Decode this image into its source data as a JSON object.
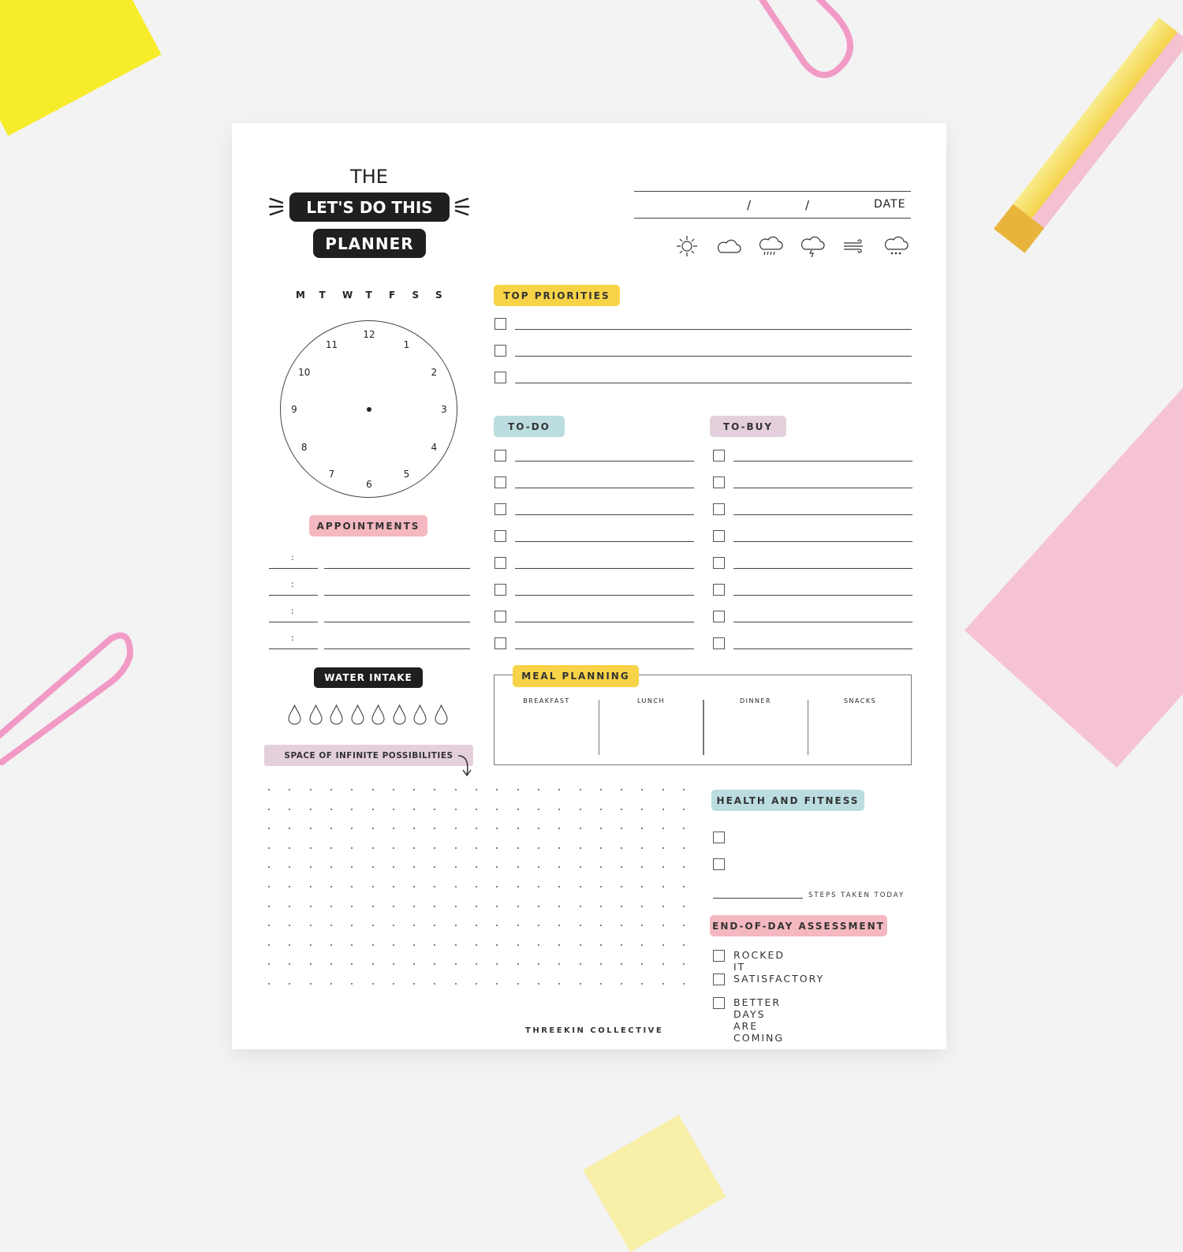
{
  "header": {
    "the": "THE",
    "line1": "LET'S DO THIS",
    "line2": "PLANNER"
  },
  "date": {
    "slash1": "/",
    "slash2": "/",
    "label": "DATE"
  },
  "weather_icons": [
    "sun-icon",
    "cloud-icon",
    "rain-icon",
    "storm-icon",
    "wind-icon",
    "snow-icon"
  ],
  "days": [
    "M",
    "T",
    "W",
    "T",
    "F",
    "S",
    "S"
  ],
  "clock": {
    "numbers": [
      "12",
      "1",
      "2",
      "3",
      "4",
      "5",
      "6",
      "7",
      "8",
      "9",
      "10",
      "11"
    ]
  },
  "sections": {
    "top_priorities": "TOP PRIORITIES",
    "todo": "TO-DO",
    "tobuy": "TO-BUY",
    "appointments": "APPOINTMENTS",
    "appointment_colon": ":",
    "water": "WATER INTAKE",
    "space": "SPACE OF INFINITE POSSIBILITIES",
    "meal": "MEAL PLANNING",
    "meal_cols": [
      "BREAKFAST",
      "LUNCH",
      "DINNER",
      "SNACKS"
    ],
    "health": "HEALTH AND FITNESS",
    "steps": "STEPS TAKEN TODAY",
    "eod": "END-OF-DAY ASSESSMENT",
    "eod_options": [
      "ROCKED IT",
      "SATISFACTORY",
      "BETTER DAYS ARE COMING"
    ]
  },
  "footer": "THREEKIN COLLECTIVE",
  "colors": {
    "yellow": "#f8d347",
    "teal": "#bcdde0",
    "lilac": "#e4d0dd",
    "pink": "#f5b8c0",
    "black": "#1f1f1f"
  }
}
